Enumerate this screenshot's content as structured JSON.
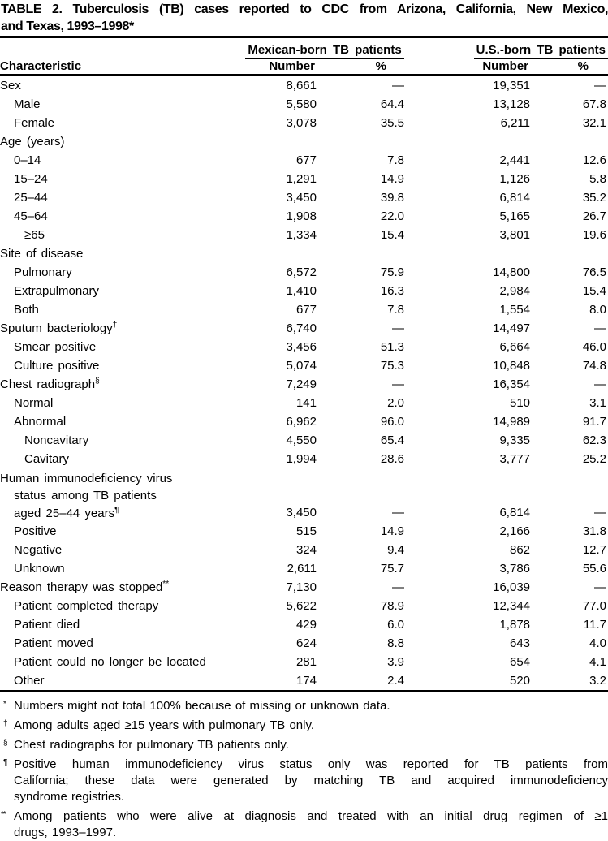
{
  "title": {
    "lines": [
      "TABLE 2. Tuberculosis (TB) cases reported to CDC from Arizona, California, New Mexico,",
      "and Texas, 1993–1998*"
    ]
  },
  "header": {
    "characteristic": "Characteristic",
    "group_mexican": "Mexican-born TB patients",
    "group_us": "U.S.-born TB patients",
    "number_label": "Number",
    "percent_label": "%"
  },
  "rows": [
    {
      "label": "Sex",
      "indent": 0,
      "mex_n": "8,661",
      "mex_p": "—",
      "us_n": "19,351",
      "us_p": "—"
    },
    {
      "label": "Male",
      "indent": 1,
      "mex_n": "5,580",
      "mex_p": "64.4",
      "us_n": "13,128",
      "us_p": "67.8"
    },
    {
      "label": "Female",
      "indent": 1,
      "mex_n": "3,078",
      "mex_p": "35.5",
      "us_n": "6,211",
      "us_p": "32.1"
    },
    {
      "label": "Age (years)",
      "indent": 0,
      "mex_n": "",
      "mex_p": "",
      "us_n": "",
      "us_p": ""
    },
    {
      "label": "0–14",
      "indent": 1,
      "mex_n": "677",
      "mex_p": "7.8",
      "us_n": "2,441",
      "us_p": "12.6"
    },
    {
      "label": "15–24",
      "indent": 1,
      "mex_n": "1,291",
      "mex_p": "14.9",
      "us_n": "1,126",
      "us_p": "5.8"
    },
    {
      "label": "25–44",
      "indent": 1,
      "mex_n": "3,450",
      "mex_p": "39.8",
      "us_n": "6,814",
      "us_p": "35.2"
    },
    {
      "label": "45–64",
      "indent": 1,
      "mex_n": "1,908",
      "mex_p": "22.0",
      "us_n": "5,165",
      "us_p": "26.7"
    },
    {
      "label": "≥65",
      "indent": 2,
      "mex_n": "1,334",
      "mex_p": "15.4",
      "us_n": "3,801",
      "us_p": "19.6"
    },
    {
      "label": "Site of disease",
      "indent": 0,
      "mex_n": "",
      "mex_p": "",
      "us_n": "",
      "us_p": ""
    },
    {
      "label": "Pulmonary",
      "indent": 1,
      "mex_n": "6,572",
      "mex_p": "75.9",
      "us_n": "14,800",
      "us_p": "76.5"
    },
    {
      "label": "Extrapulmonary",
      "indent": 1,
      "mex_n": "1,410",
      "mex_p": "16.3",
      "us_n": "2,984",
      "us_p": "15.4"
    },
    {
      "label": "Both",
      "indent": 1,
      "mex_n": "677",
      "mex_p": "7.8",
      "us_n": "1,554",
      "us_p": "8.0"
    },
    {
      "label": "Sputum bacteriology",
      "sup": "†",
      "indent": 0,
      "mex_n": "6,740",
      "mex_p": "—",
      "us_n": "14,497",
      "us_p": "—"
    },
    {
      "label": "Smear positive",
      "indent": 1,
      "mex_n": "3,456",
      "mex_p": "51.3",
      "us_n": "6,664",
      "us_p": "46.0"
    },
    {
      "label": "Culture positive",
      "indent": 1,
      "mex_n": "5,074",
      "mex_p": "75.3",
      "us_n": "10,848",
      "us_p": "74.8"
    },
    {
      "label": "Chest radiograph",
      "sup": "§",
      "indent": 0,
      "mex_n": "7,249",
      "mex_p": "—",
      "us_n": "16,354",
      "us_p": "—"
    },
    {
      "label": "Normal",
      "indent": 1,
      "mex_n": "141",
      "mex_p": "2.0",
      "us_n": "510",
      "us_p": "3.1"
    },
    {
      "label": "Abnormal",
      "indent": 1,
      "mex_n": "6,962",
      "mex_p": "96.0",
      "us_n": "14,989",
      "us_p": "91.7"
    },
    {
      "label": "Noncavitary",
      "indent": 2,
      "mex_n": "4,550",
      "mex_p": "65.4",
      "us_n": "9,335",
      "us_p": "62.3"
    },
    {
      "label": "Cavitary",
      "indent": 2,
      "mex_n": "1,994",
      "mex_p": "28.6",
      "us_n": "3,777",
      "us_p": "25.2"
    },
    {
      "lines": [
        "Human immunodeficiency virus",
        "status among TB patients",
        "aged 25–44 years"
      ],
      "sup": "¶",
      "indent": 0,
      "mex_n": "3,450",
      "mex_p": "—",
      "us_n": "6,814",
      "us_p": "—"
    },
    {
      "label": "Positive",
      "indent": 1,
      "mex_n": "515",
      "mex_p": "14.9",
      "us_n": "2,166",
      "us_p": "31.8"
    },
    {
      "label": "Negative",
      "indent": 1,
      "mex_n": "324",
      "mex_p": "9.4",
      "us_n": "862",
      "us_p": "12.7"
    },
    {
      "label": "Unknown",
      "indent": 1,
      "mex_n": "2,611",
      "mex_p": "75.7",
      "us_n": "3,786",
      "us_p": "55.6"
    },
    {
      "label": "Reason therapy was stopped",
      "sup": "**",
      "indent": 0,
      "mex_n": "7,130",
      "mex_p": "—",
      "us_n": "16,039",
      "us_p": "—"
    },
    {
      "label": "Patient completed therapy",
      "indent": 1,
      "mex_n": "5,622",
      "mex_p": "78.9",
      "us_n": "12,344",
      "us_p": "77.0"
    },
    {
      "label": "Patient died",
      "indent": 1,
      "mex_n": "429",
      "mex_p": "6.0",
      "us_n": "1,878",
      "us_p": "11.7"
    },
    {
      "label": "Patient moved",
      "indent": 1,
      "mex_n": "624",
      "mex_p": "8.8",
      "us_n": "643",
      "us_p": "4.0"
    },
    {
      "label": "Patient could no longer be located",
      "indent": 1,
      "mex_n": "281",
      "mex_p": "3.9",
      "us_n": "654",
      "us_p": "4.1"
    },
    {
      "label": "Other",
      "indent": 1,
      "mex_n": "174",
      "mex_p": "2.4",
      "us_n": "520",
      "us_p": "3.2"
    }
  ],
  "footnotes": [
    {
      "marker": "*",
      "lines": [
        "Numbers might not total 100% because of missing or unknown data."
      ]
    },
    {
      "marker": "†",
      "lines": [
        "Among adults aged ≥15 years with pulmonary TB only."
      ]
    },
    {
      "marker": "§",
      "lines": [
        "Chest radiographs for pulmonary TB patients only."
      ]
    },
    {
      "marker": "¶",
      "lines": [
        "Positive human immunodeficiency virus status only was reported for TB patients from",
        "California; these data were generated by matching TB and acquired immunodeficiency",
        "syndrome registries."
      ]
    },
    {
      "marker": "**",
      "lines": [
        "Among patients who were alive at diagnosis and treated with an initial drug regimen of ≥1",
        "drugs, 1993–1997."
      ]
    }
  ],
  "colors": {
    "text": "#000000",
    "background": "#ffffff",
    "rule": "#000000"
  }
}
